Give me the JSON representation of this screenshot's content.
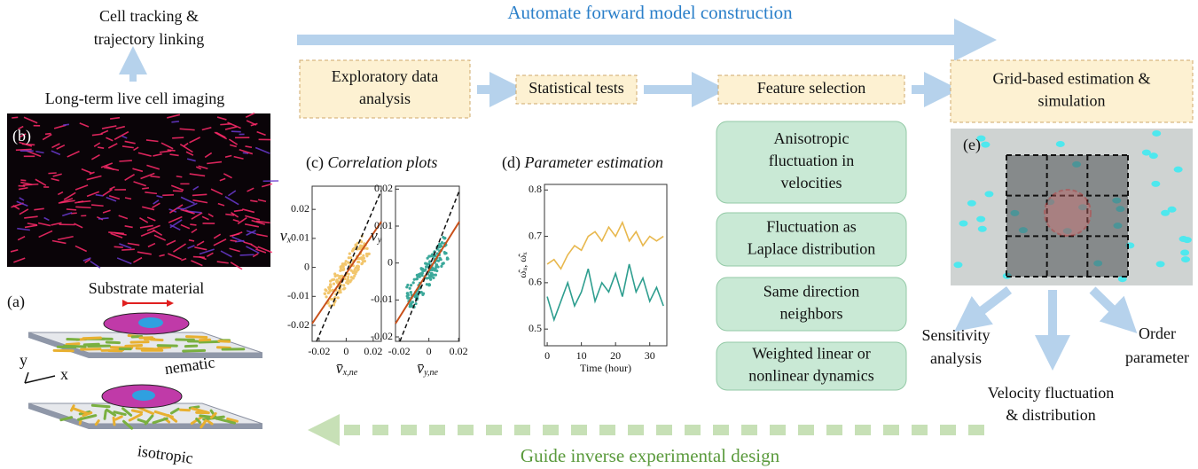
{
  "top_arrow": {
    "label": "Automate forward model construction"
  },
  "bottom_arrow": {
    "label": "Guide inverse experimental design"
  },
  "left": {
    "tracking": [
      "Cell tracking &",
      "trajectory linking"
    ],
    "imaging": "Long-term live cell imaging",
    "panel_b": "(b)",
    "panel_a": "(a)",
    "substrate": "Substrate material",
    "axis_y": "y",
    "axis_x": "x",
    "nematic": "nematic",
    "isotropic": "isotropic"
  },
  "steps": [
    [
      "Exploratory data",
      "analysis"
    ],
    [
      "Statistical tests"
    ],
    [
      "Feature selection"
    ],
    [
      "Grid-based estimation &",
      "simulation"
    ]
  ],
  "features": [
    [
      "Anisotropic",
      "fluctuation in",
      "velocities"
    ],
    [
      "Fluctuation as",
      "Laplace distribution"
    ],
    [
      "Same direction",
      "neighbors"
    ],
    [
      "Weighted linear or",
      "nonlinear dynamics"
    ]
  ],
  "panel_c": {
    "label": "(c)",
    "title": "Correlation plots",
    "plots": [
      {
        "ylabel": {
          "symbol": "v",
          "sub": "x"
        },
        "xlabel": {
          "symbol": "v̄",
          "sub": "x,ne"
        },
        "xlim": [
          -0.0252,
          0.026
        ],
        "ylim": [
          -0.0255,
          0.028
        ],
        "xticks": [
          -0.02,
          0,
          0.02
        ],
        "yticks": [
          -0.02,
          -0.01,
          0,
          0.01,
          0.02
        ],
        "color": "#f2c66d"
      },
      {
        "ylabel": {
          "symbol": "v",
          "sub": "y"
        },
        "xlabel": {
          "symbol": "v̄",
          "sub": "y,ne"
        },
        "xlim": [
          -0.0225,
          0.0205
        ],
        "ylim": [
          -0.0212,
          0.0208
        ],
        "xticks": [
          -0.02,
          0,
          0.02
        ],
        "yticks": [
          -0.02,
          -0.01,
          0,
          0.01,
          0.02
        ],
        "color": "#3aa89a"
      }
    ]
  },
  "panel_d": {
    "label": "(d)",
    "title": "Parameter estimation",
    "chart_data": {
      "type": "line",
      "xlabel": "Time (hour)",
      "ylabel": "ω̂ᵤ, ω̂ₓ",
      "x": [
        0,
        2,
        4,
        6,
        8,
        10,
        12,
        14,
        16,
        18,
        20,
        22,
        24,
        26,
        28,
        30,
        32,
        34
      ],
      "series": [
        {
          "color": "#e8b84e",
          "values": [
            0.64,
            0.65,
            0.63,
            0.66,
            0.68,
            0.67,
            0.7,
            0.71,
            0.69,
            0.72,
            0.7,
            0.73,
            0.69,
            0.71,
            0.68,
            0.7,
            0.69,
            0.7
          ]
        },
        {
          "color": "#2e9e8f",
          "values": [
            0.57,
            0.52,
            0.56,
            0.6,
            0.55,
            0.58,
            0.63,
            0.56,
            0.6,
            0.58,
            0.62,
            0.57,
            0.64,
            0.58,
            0.61,
            0.56,
            0.59,
            0.55
          ]
        }
      ],
      "xlim": [
        -0.8,
        35
      ],
      "ylim": [
        0.464,
        0.812
      ],
      "xticks": [
        0,
        10,
        20,
        30
      ],
      "yticks": [
        0.5,
        0.6,
        0.7,
        0.8
      ]
    }
  },
  "panel_e": {
    "label": "(e)",
    "outputs": {
      "sensitivity": [
        "Sensitivity",
        "analysis"
      ],
      "order": [
        "Order",
        "parameter"
      ],
      "velocity": [
        "Velocity fluctuation",
        "& distribution"
      ]
    }
  }
}
